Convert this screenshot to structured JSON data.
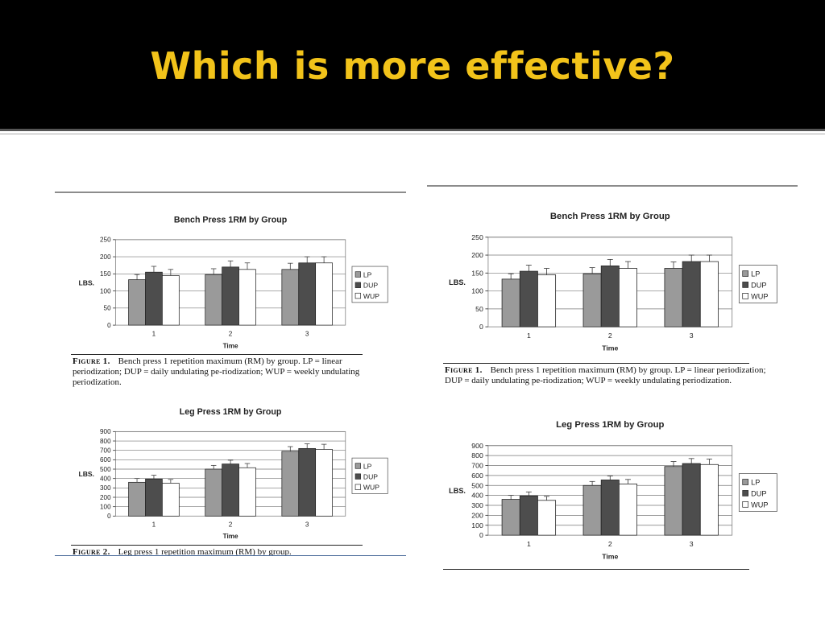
{
  "slide": {
    "title": "Which is more effective?"
  },
  "left_panel": {
    "caption1_label": "Figure 1.",
    "caption1_text": "Bench press 1 repetition maximum (RM) by group. LP = linear periodization; DUP = daily undulating pe-riodization; WUP = weekly undulating periodization.",
    "caption2_label": "Figure 2.",
    "caption2_text": "Leg press 1 repetition maximum (RM) by group."
  },
  "right_panel": {
    "caption1_label": "Figure 1.",
    "caption1_text": "Bench press 1 repetition maximum (RM) by group. LP = linear periodization; DUP = daily undulating pe-riodization; WUP = weekly undulating periodization."
  },
  "colors": {
    "title": "#f2c31a",
    "LP": "#9a9a9a",
    "DUP": "#4d4d4d",
    "WUP": "#ffffff",
    "plot_bg": "#ffffff"
  },
  "chart_data": [
    {
      "id": "bench",
      "type": "bar",
      "title": "Bench Press 1RM by Group",
      "xlabel": "Time",
      "ylabel": "LBS.",
      "categories": [
        "1",
        "2",
        "3"
      ],
      "ylim": [
        0,
        250
      ],
      "yticks": [
        0,
        50,
        100,
        150,
        200,
        250
      ],
      "grid": true,
      "legend": "right",
      "series": [
        {
          "name": "LP",
          "values": [
            133,
            148,
            163
          ],
          "errors": [
            15,
            17,
            18
          ]
        },
        {
          "name": "DUP",
          "values": [
            155,
            170,
            182
          ],
          "errors": [
            17,
            18,
            18
          ]
        },
        {
          "name": "WUP",
          "values": [
            145,
            163,
            182
          ],
          "errors": [
            18,
            19,
            18
          ]
        }
      ]
    },
    {
      "id": "leg",
      "type": "bar",
      "title": "Leg Press 1RM by Group",
      "xlabel": "Time",
      "ylabel": "LBS.",
      "categories": [
        "1",
        "2",
        "3"
      ],
      "ylim": [
        0,
        900
      ],
      "yticks": [
        0,
        100,
        200,
        300,
        400,
        500,
        600,
        700,
        800,
        900
      ],
      "grid": true,
      "legend": "right",
      "series": [
        {
          "name": "LP",
          "values": [
            360,
            500,
            690
          ],
          "errors": [
            40,
            40,
            50
          ]
        },
        {
          "name": "DUP",
          "values": [
            395,
            555,
            720
          ],
          "errors": [
            40,
            40,
            50
          ]
        },
        {
          "name": "WUP",
          "values": [
            350,
            515,
            710
          ],
          "errors": [
            40,
            45,
            55
          ]
        }
      ]
    }
  ]
}
